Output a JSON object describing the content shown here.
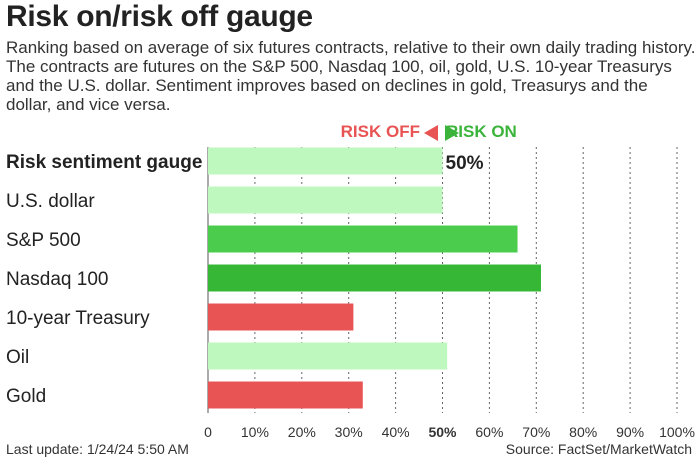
{
  "title": "Risk on/risk off gauge",
  "subtitle": "Ranking based on average of six futures contracts, relative to their own daily trading history. The contracts are futures on the S&P 500, Nasdaq 100, oil, gold, U.S. 10-year Treasurys and the U.S. dollar. Sentiment improves based on declines in gold, Treasurys and the dollar, and vice versa.",
  "header": {
    "risk_off": "RISK OFF",
    "risk_on": "RISK ON"
  },
  "colors": {
    "light_green": "#bff8bf",
    "mid_green": "#4ccc4c",
    "dark_green": "#36b836",
    "red": "#e85454"
  },
  "chart_data": {
    "type": "bar",
    "orientation": "horizontal",
    "categories": [
      "Risk sentiment gauge",
      "U.S. dollar",
      "S&P 500",
      "Nasdaq 100",
      "10-year Treasury",
      "Oil",
      "Gold"
    ],
    "values": [
      50,
      50,
      66,
      71,
      31,
      51,
      33
    ],
    "bar_colors": [
      "#bff8bf",
      "#bff8bf",
      "#4ccc4c",
      "#36b836",
      "#e85454",
      "#bff8bf",
      "#e85454"
    ],
    "value_labels": [
      "50%",
      "",
      "",
      "",
      "",
      "",
      ""
    ],
    "x_ticks": [
      "0",
      "10%",
      "20%",
      "30%",
      "40%",
      "50%",
      "60%",
      "70%",
      "80%",
      "90%",
      "100%"
    ],
    "xlim": [
      0,
      100
    ],
    "grid": "vertical dashed"
  },
  "footer": {
    "last_update": "Last update: 1/24/24 5:50 AM",
    "source": "Source: FactSet/MarketWatch"
  }
}
